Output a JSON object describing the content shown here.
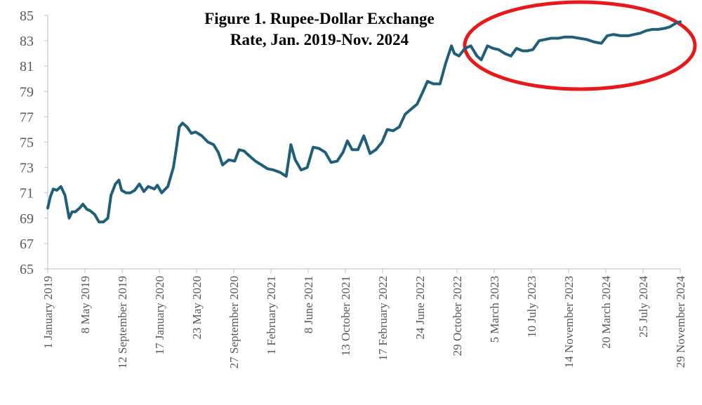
{
  "chart_data": {
    "type": "line",
    "title_lines": [
      "Figure 1. Rupee-Dollar Exchange",
      "Rate, Jan. 2019-Nov. 2024"
    ],
    "xlabel": "",
    "ylabel": "",
    "ylim": [
      65,
      85
    ],
    "y_ticks": [
      "65",
      "67",
      "69",
      "71",
      "73",
      "75",
      "77",
      "79",
      "81",
      "83",
      "85"
    ],
    "x_ticks": [
      "1 January 2019",
      "8 May 2019",
      "12 September 2019",
      "17 January 2020",
      "23 May 2020",
      "27 September 2020",
      "1 February 2021",
      "8 June 2021",
      "13 October 2021",
      "17 February 2022",
      "24 June 2022",
      "29 October 2022",
      "5 March 2023",
      "10 July 2023",
      "14 November 2023",
      "20 March 2024",
      "25 July 2024",
      "29 November 2024"
    ],
    "grid": false,
    "legend": "none",
    "line_color": "#1F5F7A",
    "annotation": {
      "shape": "ellipse",
      "color": "#E8191B",
      "highlights": "2023-2024 period"
    },
    "series": [
      {
        "x": [
          "2019-01-01",
          "2019-01-10",
          "2019-01-20",
          "2019-02-01",
          "2019-02-15",
          "2019-03-01",
          "2019-03-15",
          "2019-03-25",
          "2019-04-05",
          "2019-04-20",
          "2019-05-01",
          "2019-05-15",
          "2019-05-25",
          "2019-06-10",
          "2019-06-25",
          "2019-07-10",
          "2019-07-25",
          "2019-08-05",
          "2019-08-20",
          "2019-09-01",
          "2019-09-10",
          "2019-09-25",
          "2019-10-10",
          "2019-10-25",
          "2019-11-10",
          "2019-11-25",
          "2019-12-10",
          "2019-12-31",
          "2020-01-10",
          "2020-01-25",
          "2020-02-15",
          "2020-03-05",
          "2020-03-15",
          "2020-03-25",
          "2020-04-05",
          "2020-04-20",
          "2020-05-05",
          "2020-05-20",
          "2020-06-10",
          "2020-07-01",
          "2020-07-20",
          "2020-08-05",
          "2020-08-20",
          "2020-09-10",
          "2020-09-30",
          "2020-10-15",
          "2020-11-01",
          "2020-11-20",
          "2020-12-10",
          "2020-12-31",
          "2021-01-20",
          "2021-02-10",
          "2021-03-05",
          "2021-03-25",
          "2021-04-10",
          "2021-04-25",
          "2021-05-15",
          "2021-06-05",
          "2021-06-25",
          "2021-07-15",
          "2021-08-05",
          "2021-08-25",
          "2021-09-15",
          "2021-10-05",
          "2021-10-20",
          "2021-11-05",
          "2021-11-25",
          "2021-12-15",
          "2022-01-05",
          "2022-01-25",
          "2022-02-15",
          "2022-03-05",
          "2022-03-25",
          "2022-04-15",
          "2022-05-05",
          "2022-05-25",
          "2022-06-15",
          "2022-07-05",
          "2022-07-20",
          "2022-08-10",
          "2022-09-01",
          "2022-09-20",
          "2022-10-10",
          "2022-10-20",
          "2022-11-05",
          "2022-11-25",
          "2022-12-15",
          "2023-01-05",
          "2023-01-20",
          "2023-02-10",
          "2023-03-01",
          "2023-03-20",
          "2023-04-10",
          "2023-05-01",
          "2023-05-20",
          "2023-06-10",
          "2023-06-25",
          "2023-07-15",
          "2023-08-05",
          "2023-08-25",
          "2023-09-15",
          "2023-10-10",
          "2023-11-01",
          "2023-11-25",
          "2023-12-20",
          "2024-01-15",
          "2024-02-10",
          "2024-03-05",
          "2024-03-25",
          "2024-04-15",
          "2024-05-10",
          "2024-06-05",
          "2024-06-25",
          "2024-07-15",
          "2024-08-05",
          "2024-08-25",
          "2024-09-15",
          "2024-10-10",
          "2024-10-25",
          "2024-11-15",
          "2024-11-29"
        ],
        "y": [
          69.8,
          70.7,
          71.3,
          71.2,
          71.5,
          70.8,
          69.0,
          69.5,
          69.5,
          69.8,
          70.1,
          69.7,
          69.6,
          69.3,
          68.7,
          68.7,
          69.0,
          70.8,
          71.7,
          72.0,
          71.2,
          71.0,
          71.0,
          71.2,
          71.7,
          71.1,
          71.5,
          71.3,
          71.6,
          71.0,
          71.5,
          73.0,
          74.5,
          76.2,
          76.5,
          76.2,
          75.7,
          75.8,
          75.5,
          75.0,
          74.8,
          74.2,
          73.2,
          73.6,
          73.5,
          74.4,
          74.3,
          73.9,
          73.5,
          73.2,
          72.9,
          72.8,
          72.6,
          72.3,
          74.8,
          73.6,
          72.8,
          73.0,
          74.6,
          74.5,
          74.2,
          73.4,
          73.5,
          74.2,
          75.1,
          74.4,
          74.4,
          75.5,
          74.1,
          74.4,
          75.0,
          76.0,
          75.9,
          76.2,
          77.2,
          77.6,
          78.0,
          79.0,
          79.8,
          79.6,
          79.6,
          81.2,
          82.6,
          82.0,
          81.8,
          82.4,
          82.6,
          81.8,
          81.5,
          82.6,
          82.4,
          82.3,
          82.0,
          81.8,
          82.4,
          82.2,
          82.2,
          82.3,
          83.0,
          83.1,
          83.2,
          83.2,
          83.3,
          83.3,
          83.2,
          83.1,
          82.9,
          82.8,
          83.4,
          83.5,
          83.4,
          83.4,
          83.5,
          83.6,
          83.8,
          83.9,
          83.9,
          84.0,
          84.1,
          84.4,
          84.5
        ]
      }
    ]
  }
}
